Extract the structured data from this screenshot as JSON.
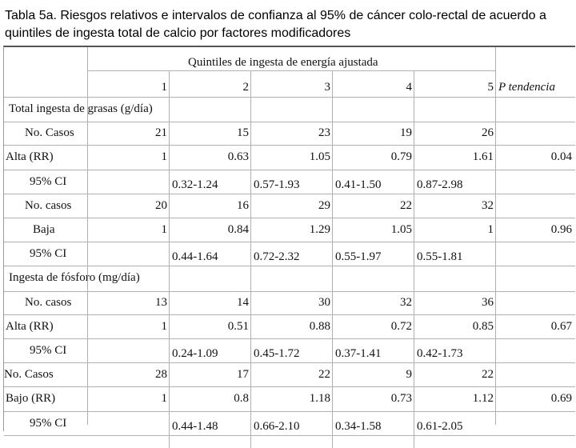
{
  "title": "Tabla 5a. Riesgos relativos e intervalos de confianza al 95% de cáncer colo-rectal de acuerdo a quintiles de ingesta total de calcio por factores modificadores",
  "header": {
    "group_label": "Quintiles de ingesta de energía ajustada",
    "quintiles": [
      "1",
      "2",
      "3",
      "4",
      "5"
    ],
    "p_label": "P tendencia"
  },
  "sections": [
    {
      "title": "Total ingesta de grasas (g/día)",
      "rows": [
        {
          "label": "No. Casos",
          "values": [
            "21",
            "15",
            "23",
            "19",
            "26"
          ],
          "p": ""
        },
        {
          "label": "Alta (RR)",
          "values": [
            "1",
            "0.63",
            "1.05",
            "0.79",
            "1.61"
          ],
          "p": "0.04"
        },
        {
          "label": "95% CI",
          "values": [
            "",
            "0.32-1.24",
            "0.57-1.93",
            "0.41-1.50",
            "0.87-2.98"
          ],
          "p": ""
        },
        {
          "label": "No. casos",
          "values": [
            "20",
            "16",
            "29",
            "22",
            "32"
          ],
          "p": ""
        },
        {
          "label": "Baja",
          "values": [
            "1",
            "0.84",
            "1.29",
            "1.05",
            "1"
          ],
          "p": "0.96"
        },
        {
          "label": "95% CI",
          "values": [
            "",
            "0.44-1.64",
            "0.72-2.32",
            "0.55-1.97",
            "0.55-1.81"
          ],
          "p": ""
        }
      ]
    },
    {
      "title": "Ingesta de fósforo (mg/día)",
      "rows": [
        {
          "label": "No. casos",
          "values": [
            "13",
            "14",
            "30",
            "32",
            "36"
          ],
          "p": ""
        },
        {
          "label": "Alta (RR)",
          "values": [
            "1",
            "0.51",
            "0.88",
            "0.72",
            "0.85"
          ],
          "p": "0.67"
        },
        {
          "label": "95% CI",
          "values": [
            "",
            "0.24-1.09",
            "0.45-1.72",
            "0.37-1.41",
            "0.42-1.73"
          ],
          "p": ""
        },
        {
          "label": "No. Casos",
          "values": [
            "28",
            "17",
            "22",
            "9",
            "22"
          ],
          "p": ""
        },
        {
          "label": "Bajo (RR)",
          "values": [
            "1",
            "0.8",
            "1.18",
            "0.73",
            "1.12"
          ],
          "p": "0.69"
        },
        {
          "label": "95% CI",
          "values": [
            "",
            "0.44-1.48",
            "0.66-2.10",
            "0.34-1.58",
            "0.61-2.05"
          ],
          "p": ""
        }
      ]
    }
  ]
}
